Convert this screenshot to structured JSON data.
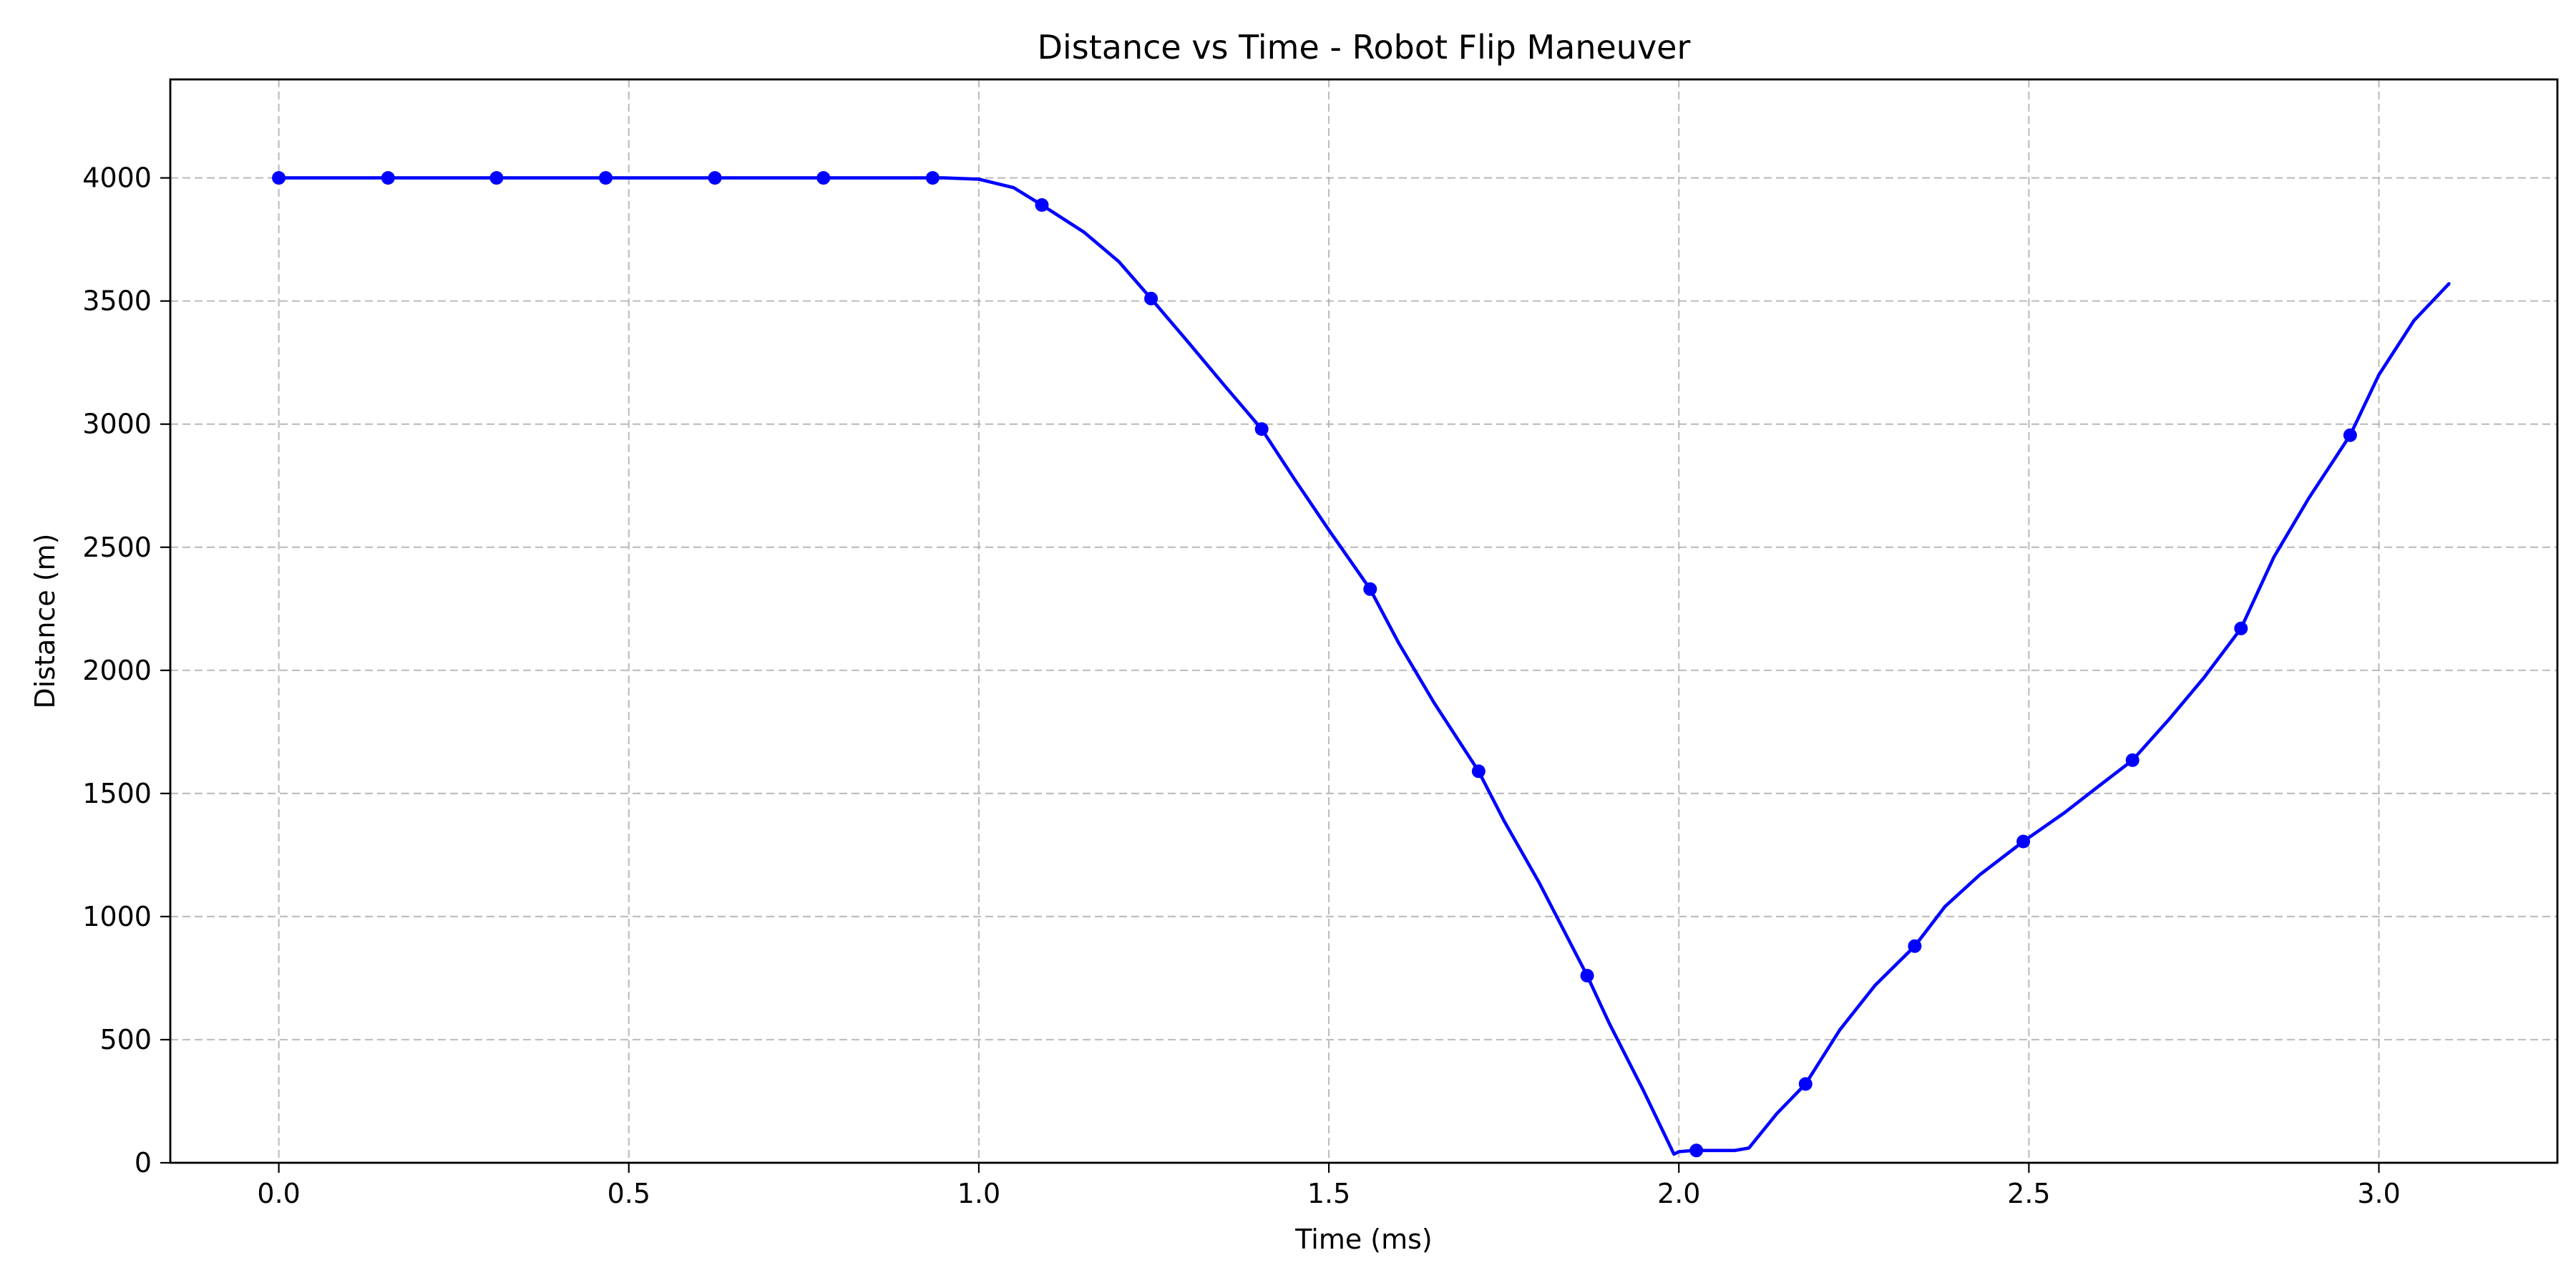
{
  "chart_data": {
    "type": "line",
    "title": "Distance vs Time - Robot Flip Maneuver",
    "xlabel": "Time (ms)",
    "ylabel": "Distance (m)",
    "xlim": [
      -0.155,
      3.255
    ],
    "ylim": [
      0,
      4400
    ],
    "xticks": [
      0.0,
      0.5,
      1.0,
      1.5,
      2.0,
      2.5,
      3.0
    ],
    "xtick_labels": [
      "0.0",
      "0.5",
      "1.0",
      "1.5",
      "2.0",
      "2.5",
      "3.0"
    ],
    "yticks": [
      0,
      500,
      1000,
      1500,
      2000,
      2500,
      3000,
      3500,
      4000
    ],
    "ytick_labels": [
      "0",
      "500",
      "1000",
      "1500",
      "2000",
      "2500",
      "3000",
      "3500",
      "4000"
    ],
    "grid": true,
    "colors": {
      "line": "#0000ff",
      "marker": "#0000ff",
      "grid": "#b0b0b0"
    },
    "series": [
      {
        "line": [
          [
            0.0,
            4000
          ],
          [
            0.2,
            4000
          ],
          [
            0.4,
            4000
          ],
          [
            0.6,
            4000
          ],
          [
            0.8,
            4000
          ],
          [
            0.95,
            4000
          ],
          [
            1.0,
            3995
          ],
          [
            1.05,
            3960
          ],
          [
            1.09,
            3890
          ],
          [
            1.15,
            3780
          ],
          [
            1.2,
            3660
          ],
          [
            1.246,
            3510
          ],
          [
            1.3,
            3330
          ],
          [
            1.35,
            3160
          ],
          [
            1.404,
            2980
          ],
          [
            1.45,
            2780
          ],
          [
            1.5,
            2570
          ],
          [
            1.559,
            2330
          ],
          [
            1.6,
            2110
          ],
          [
            1.65,
            1870
          ],
          [
            1.714,
            1590
          ],
          [
            1.75,
            1390
          ],
          [
            1.8,
            1140
          ],
          [
            1.869,
            760
          ],
          [
            1.9,
            570
          ],
          [
            1.95,
            290
          ],
          [
            1.993,
            35
          ],
          [
            2.0,
            45
          ],
          [
            2.02,
            50
          ],
          [
            2.04,
            50
          ],
          [
            2.06,
            50
          ],
          [
            2.08,
            50
          ],
          [
            2.1,
            60
          ],
          [
            2.14,
            200
          ],
          [
            2.181,
            320
          ],
          [
            2.23,
            540
          ],
          [
            2.28,
            720
          ],
          [
            2.337,
            880
          ],
          [
            2.38,
            1040
          ],
          [
            2.43,
            1170
          ],
          [
            2.492,
            1305
          ],
          [
            2.55,
            1420
          ],
          [
            2.6,
            1530
          ],
          [
            2.648,
            1635
          ],
          [
            2.7,
            1800
          ],
          [
            2.75,
            1970
          ],
          [
            2.803,
            2170
          ],
          [
            2.85,
            2460
          ],
          [
            2.9,
            2700
          ],
          [
            2.959,
            2955
          ],
          [
            3.0,
            3200
          ],
          [
            3.05,
            3420
          ],
          [
            3.1,
            3570
          ]
        ],
        "markers": [
          [
            0.0,
            4000
          ],
          [
            0.156,
            4000
          ],
          [
            0.311,
            4000
          ],
          [
            0.467,
            4000
          ],
          [
            0.623,
            4000
          ],
          [
            0.778,
            4000
          ],
          [
            0.934,
            4000
          ],
          [
            1.09,
            3890
          ],
          [
            1.246,
            3510
          ],
          [
            1.404,
            2980
          ],
          [
            1.559,
            2330
          ],
          [
            1.714,
            1590
          ],
          [
            1.869,
            760
          ],
          [
            2.025,
            50
          ],
          [
            2.181,
            320
          ],
          [
            2.337,
            880
          ],
          [
            2.492,
            1305
          ],
          [
            2.648,
            1635
          ],
          [
            2.803,
            2170
          ],
          [
            2.959,
            2955
          ]
        ]
      }
    ]
  }
}
